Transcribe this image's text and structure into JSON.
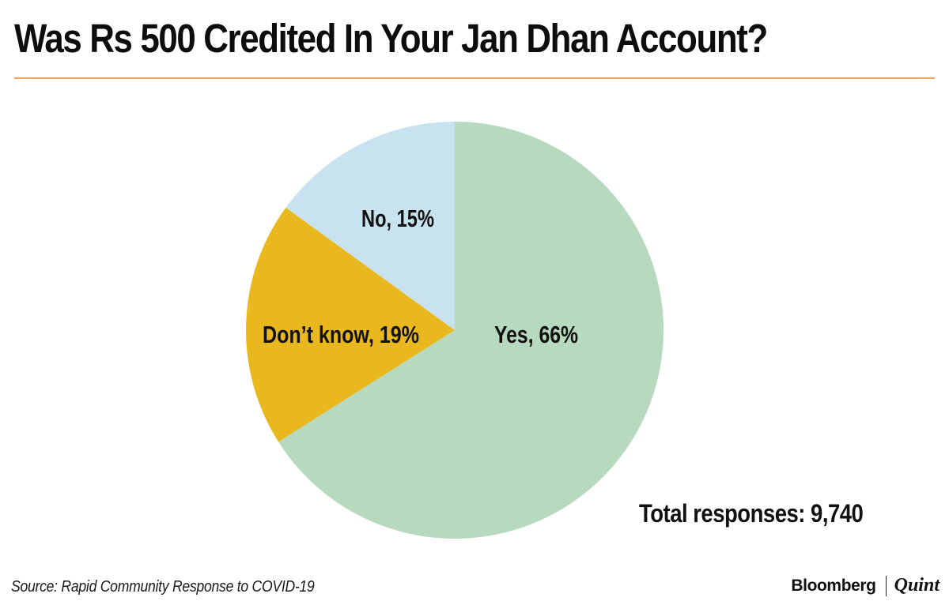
{
  "title": "Was Rs 500 Credited In Your Jan Dhan Account?",
  "colors": {
    "yes": "#b7d9be",
    "dont_know": "#e9b81f",
    "no": "#c8e3ef",
    "rule": "#f0a35a"
  },
  "chart_data": {
    "type": "pie",
    "title": "Was Rs 500 Credited In Your Jan Dhan Account?",
    "slices": [
      {
        "category": "Yes",
        "value": 66,
        "label": "Yes, 66%"
      },
      {
        "category": "Don't know",
        "value": 19,
        "label": "Don’t know, 19%"
      },
      {
        "category": "No",
        "value": 15,
        "label": "No, 15%"
      }
    ],
    "start": "12 o'clock",
    "direction": "clockwise",
    "annotation": "Total responses: 9,740"
  },
  "footer": {
    "source": "Source: Rapid Community Response to COVID-19",
    "brand_left": "Bloomberg",
    "brand_right": "Quint"
  }
}
